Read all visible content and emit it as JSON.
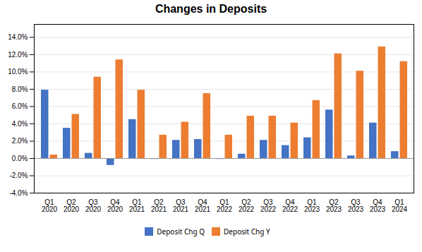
{
  "chart_data": {
    "type": "bar",
    "title": "Changes in Deposits",
    "categories": [
      "Q1",
      "Q2",
      "Q3",
      "Q4",
      "Q1",
      "Q2",
      "Q3",
      "Q4",
      "Q1",
      "Q2",
      "Q3",
      "Q4",
      "Q1",
      "Q2",
      "Q3",
      "Q4",
      "Q1"
    ],
    "years": [
      "2020",
      "2020",
      "2020",
      "2020",
      "2021",
      "2021",
      "2021",
      "2021",
      "2022",
      "2022",
      "2022",
      "2022",
      "2023",
      "2023",
      "2023",
      "2023",
      "2024"
    ],
    "series": [
      {
        "name": "Deposit Chg Q",
        "color": "#4472C4",
        "values": [
          0.079,
          0.035,
          0.006,
          -0.008,
          0.045,
          -0.001,
          0.021,
          0.022,
          -0.001,
          0.005,
          0.021,
          0.015,
          0.024,
          0.056,
          0.003,
          0.041,
          0.008
        ]
      },
      {
        "name": "Deposit Chg Y",
        "color": "#ED7D31",
        "values": [
          0.004,
          0.051,
          0.094,
          0.114,
          0.079,
          0.027,
          0.042,
          0.075,
          0.027,
          0.049,
          0.049,
          0.041,
          0.067,
          0.121,
          0.101,
          0.129,
          0.112
        ]
      }
    ],
    "ylim": [
      -0.04,
      0.155
    ],
    "yticks": [
      {
        "value": -0.04,
        "label": "-4.0%"
      },
      {
        "value": -0.02,
        "label": "-2.0%"
      },
      {
        "value": 0.0,
        "label": "0.0%"
      },
      {
        "value": 0.02,
        "label": "2.0%"
      },
      {
        "value": 0.04,
        "label": "4.0%"
      },
      {
        "value": 0.06,
        "label": "6.0%"
      },
      {
        "value": 0.08,
        "label": "8.0%"
      },
      {
        "value": 0.1,
        "label": "10.0%"
      },
      {
        "value": 0.12,
        "label": "12.0%"
      },
      {
        "value": 0.14,
        "label": "14.0%"
      }
    ],
    "grid": true,
    "legend": "bottom"
  }
}
